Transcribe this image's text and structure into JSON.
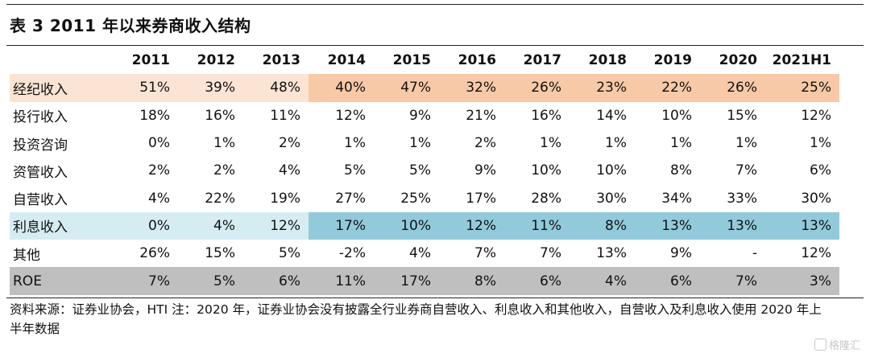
{
  "title": "表 3 2011 年以来券商收入结构",
  "header": {
    "label": "",
    "years": [
      "2011",
      "2012",
      "2013",
      "2014",
      "2015",
      "2016",
      "2017",
      "2018",
      "2019",
      "2020",
      "2021H1"
    ]
  },
  "rows": [
    {
      "label": "经纪收入",
      "values": [
        "51%",
        "39%",
        "48%",
        "40%",
        "47%",
        "32%",
        "26%",
        "23%",
        "22%",
        "26%",
        "25%"
      ]
    },
    {
      "label": "投行收入",
      "values": [
        "18%",
        "16%",
        "11%",
        "12%",
        "9%",
        "21%",
        "16%",
        "14%",
        "10%",
        "15%",
        "12%"
      ]
    },
    {
      "label": "投资咨询",
      "values": [
        "0%",
        "1%",
        "2%",
        "1%",
        "1%",
        "2%",
        "1%",
        "1%",
        "1%",
        "1%",
        "1%"
      ]
    },
    {
      "label": "资管收入",
      "values": [
        "2%",
        "2%",
        "4%",
        "5%",
        "5%",
        "9%",
        "10%",
        "10%",
        "8%",
        "7%",
        "6%"
      ]
    },
    {
      "label": "自营收入",
      "values": [
        "4%",
        "22%",
        "19%",
        "27%",
        "25%",
        "17%",
        "28%",
        "30%",
        "34%",
        "33%",
        "30%"
      ]
    },
    {
      "label": "利息收入",
      "values": [
        "0%",
        "4%",
        "12%",
        "17%",
        "10%",
        "12%",
        "11%",
        "8%",
        "13%",
        "13%",
        "13%"
      ]
    },
    {
      "label": "其他",
      "values": [
        "26%",
        "15%",
        "5%",
        "-2%",
        "4%",
        "7%",
        "7%",
        "13%",
        "9%",
        "-",
        "12%"
      ]
    },
    {
      "label": "ROE",
      "values": [
        "7%",
        "5%",
        "6%",
        "11%",
        "17%",
        "8%",
        "6%",
        "4%",
        "6%",
        "7%",
        "3%"
      ]
    }
  ],
  "highlight_colors": {
    "orange_light": "#fbe4d4",
    "orange": "#f7c9a6",
    "blue_light": "#d6ecf3",
    "blue": "#92cadb",
    "gray": "#bfbfbf"
  },
  "footnote": "资料来源：证券业协会，HTI 注：2020 年，证券业协会没有披露全行业券商自营收入、利息收入和其他收入，自营收入及利息收入使用 2020 年上半年数据",
  "watermark": "格隆汇"
}
